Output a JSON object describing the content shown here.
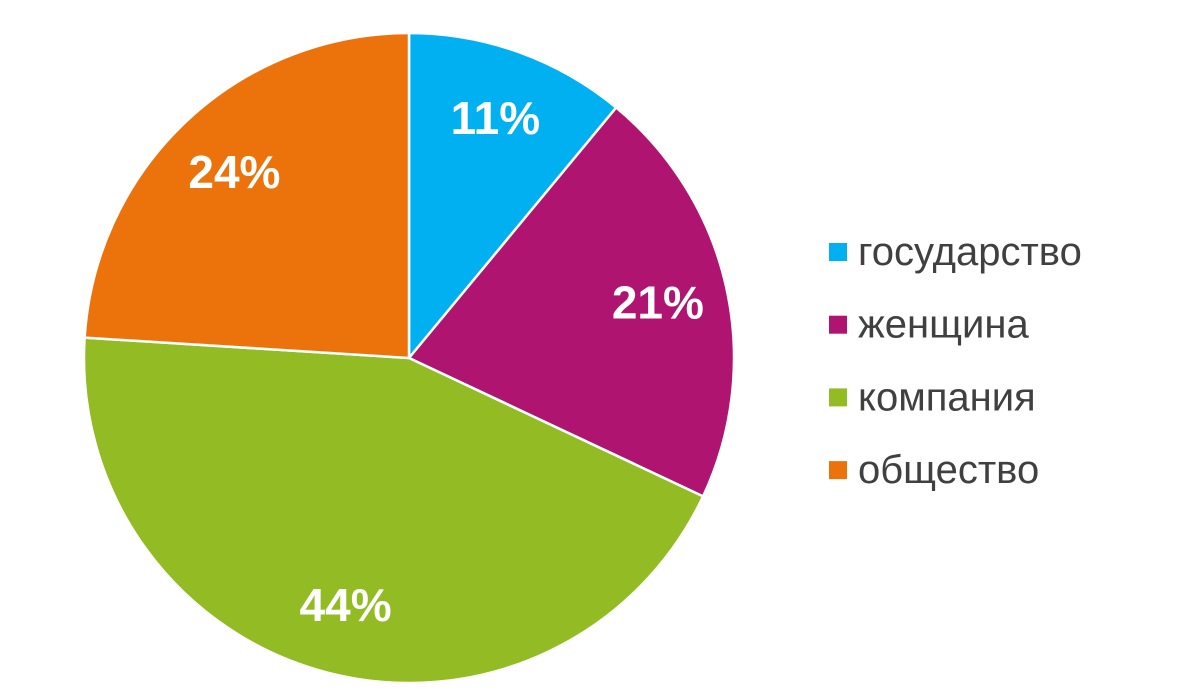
{
  "chart_data": {
    "type": "pie",
    "categories": [
      "государство",
      "женщина",
      "компания",
      "общество"
    ],
    "values": [
      11,
      21,
      44,
      24
    ],
    "value_labels": [
      "11%",
      "21%",
      "44%",
      "24%"
    ],
    "colors": [
      "#00b0f0",
      "#ae1470",
      "#92bb24",
      "#ec730b"
    ],
    "legend": "right"
  }
}
